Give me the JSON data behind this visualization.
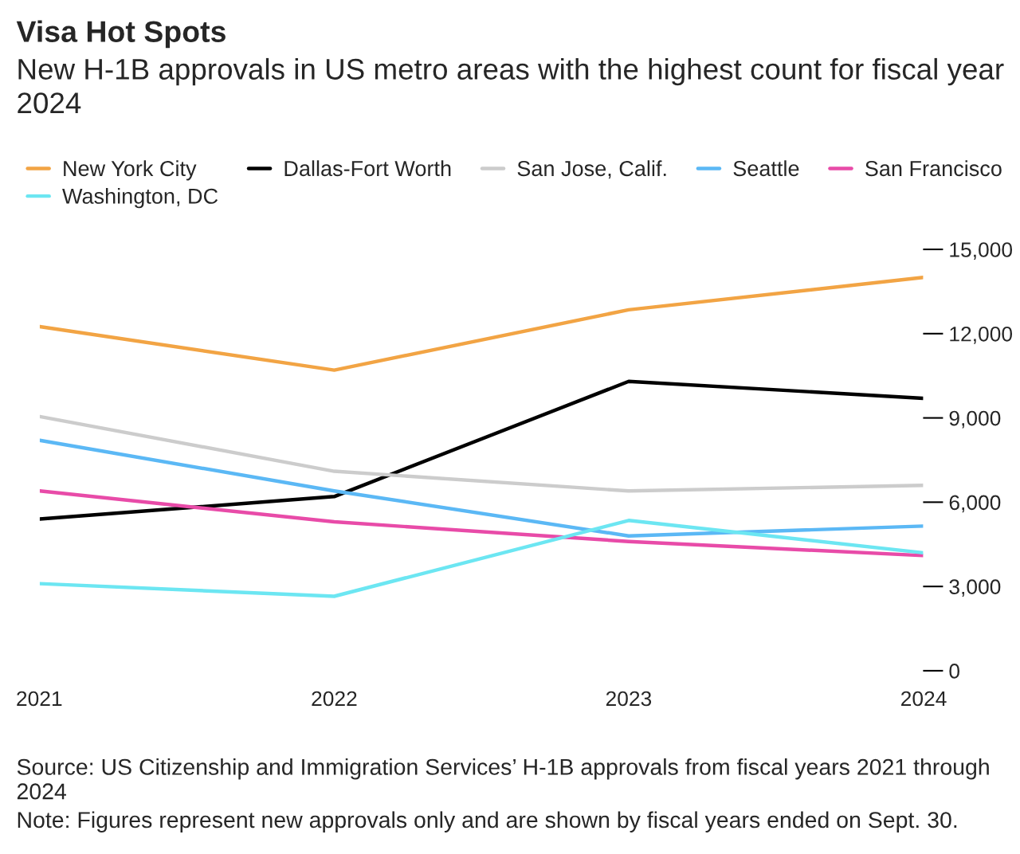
{
  "chart_data": {
    "type": "line",
    "title": "Visa Hot Spots",
    "subtitle": "New H-1B approvals in US metro areas with the highest count for fiscal year 2024",
    "x": [
      2021,
      2022,
      2023,
      2024
    ],
    "xlim": [
      2021,
      2024
    ],
    "xticks": [
      2021,
      2022,
      2023,
      2024
    ],
    "ylim": [
      0,
      15000
    ],
    "yticks": [
      0,
      {
        "value": 3000,
        "label": "3,000"
      },
      {
        "value": 6000,
        "label": "6,000"
      },
      {
        "value": 9000,
        "label": "9,000"
      },
      {
        "value": 12000,
        "label": "12,000"
      },
      {
        "value": 15000,
        "label": "15,000"
      }
    ],
    "series": [
      {
        "name": "New York City",
        "color": "#f2a444",
        "values": [
          12250,
          10700,
          12850,
          14000
        ]
      },
      {
        "name": "Dallas-Fort Worth",
        "color": "#000000",
        "values": [
          5400,
          6200,
          10300,
          9700
        ]
      },
      {
        "name": "San Jose, Calif.",
        "color": "#cccccc",
        "values": [
          9050,
          7100,
          6400,
          6600
        ]
      },
      {
        "name": "Seattle",
        "color": "#5bb8f5",
        "values": [
          8200,
          6400,
          4800,
          5150
        ]
      },
      {
        "name": "San Francisco",
        "color": "#e84ba8",
        "values": [
          6400,
          5300,
          4600,
          4100
        ]
      },
      {
        "name": "Washington, DC",
        "color": "#6ce6f2",
        "values": [
          3100,
          2650,
          5350,
          4200
        ]
      }
    ],
    "legend": "top",
    "grid": false,
    "marker": "none",
    "line_style": "solid",
    "annotations": [
      "Source: US Citizenship and Immigration Services’ H-1B approvals from fiscal years 2021 through 2024",
      "Note: Figures represent new approvals only and are shown by fiscal years ended on Sept. 30."
    ]
  }
}
